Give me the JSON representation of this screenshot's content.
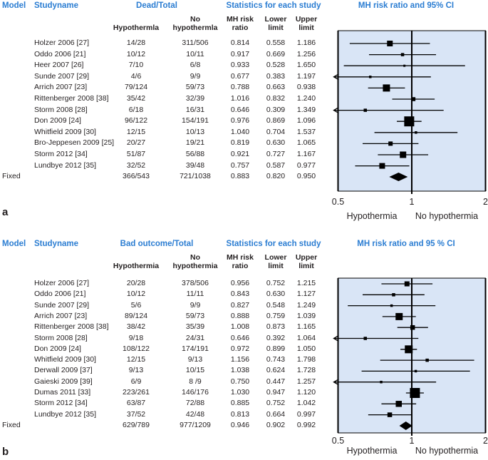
{
  "colors": {
    "header_blue": "#2b7dd2",
    "plot_bg": "#d9e5f6",
    "ink": "#231f20",
    "marker": "#000000"
  },
  "chart_data": [
    {
      "type": "forest",
      "panel_label": "a",
      "title": "MH risk ratio and 95% CI",
      "columns": {
        "model": "Model",
        "studyname": "Studyname",
        "group": "Dead/Total",
        "stats": "Statistics for each study"
      },
      "subcolumns": {
        "hypo": "Hypothermla",
        "no_hypo_1": "No",
        "no_hypo_2": "hypothermla",
        "ratio_1": "MH risk",
        "ratio_2": "ratio",
        "lower_1": "Lower",
        "lower_2": "limit",
        "upper_1": "Upper",
        "upper_2": "limit"
      },
      "model_row_label": "Fixed",
      "xscale": "log2",
      "xlim": [
        0.5,
        2
      ],
      "tick_labels": [
        "0.5",
        "1",
        "2"
      ],
      "xlabel_left": "Hypothermia",
      "xlabel_right": "No hypothermia",
      "studies": [
        {
          "name": "Holzer 2006 [27]",
          "hypo": "14/28",
          "no_hypo": "311/506",
          "ratio": "0.814",
          "lower": "0.558",
          "upper": "1.186",
          "size": 8
        },
        {
          "name": "Oddo 2006 [21]",
          "hypo": "10/12",
          "no_hypo": "10/11",
          "ratio": "0.917",
          "lower": "0.669",
          "upper": "1.256",
          "size": 4.5
        },
        {
          "name": "Heer 2007 [26]",
          "hypo": "7/10",
          "no_hypo": "6/8",
          "ratio": "0.933",
          "lower": "0.528",
          "upper": "1.650",
          "size": 3
        },
        {
          "name": "Sunde 2007 [29]",
          "hypo": "4/6",
          "no_hypo": "9/9",
          "ratio": "0.677",
          "lower": "0.383",
          "upper": "1.197",
          "size": 3.5
        },
        {
          "name": "Arrich 2007 [23]",
          "hypo": "79/124",
          "no_hypo": "59/73",
          "ratio": "0.788",
          "lower": "0.663",
          "upper": "0.938",
          "size": 10
        },
        {
          "name": "Rittenberger 2008 [38]",
          "hypo": "35/42",
          "no_hypo": "32/39",
          "ratio": "1.016",
          "lower": "0.832",
          "upper": "1.240",
          "size": 5.5
        },
        {
          "name": "Storm 2008 [28]",
          "hypo": "6/18",
          "no_hypo": "16/31",
          "ratio": "0.646",
          "lower": "0.309",
          "upper": "1.349",
          "size": 4.5
        },
        {
          "name": "Don 2009 [24]",
          "hypo": "96/122",
          "no_hypo": "154/191",
          "ratio": "0.976",
          "lower": "0.869",
          "upper": "1.096",
          "size": 14
        },
        {
          "name": "Whitfield 2009 [30]",
          "hypo": "12/15",
          "no_hypo": "10/13",
          "ratio": "1.040",
          "lower": "0.704",
          "upper": "1.537",
          "size": 3.5
        },
        {
          "name": "Bro-Jeppesen 2009 [25]",
          "hypo": "20/27",
          "no_hypo": "19/21",
          "ratio": "0.819",
          "lower": "0.630",
          "upper": "1.065",
          "size": 6
        },
        {
          "name": "Storm 2012 [34]",
          "hypo": "51/87",
          "no_hypo": "56/88",
          "ratio": "0.921",
          "lower": "0.727",
          "upper": "1.167",
          "size": 9
        },
        {
          "name": "Lundbye 2012 [35]",
          "hypo": "32/52",
          "no_hypo": "39/48",
          "ratio": "0.757",
          "lower": "0.587",
          "upper": "0.977",
          "size": 8
        }
      ],
      "fixed": {
        "hypo": "366/543",
        "no_hypo": "721/1038",
        "ratio": "0.883",
        "lower": "0.820",
        "upper": "0.950"
      }
    },
    {
      "type": "forest",
      "panel_label": "b",
      "title": "MH risk ratio and 95 % CI",
      "columns": {
        "model": "Model",
        "studyname": "Studyname",
        "group": "Bad outcome/Total",
        "stats": "Statistics for each study"
      },
      "subcolumns": {
        "hypo": "Hypothermia",
        "no_hypo_1": "No",
        "no_hypo_2": "hypothermia",
        "ratio_1": "MH risk",
        "ratio_2": "ratio",
        "lower_1": "Lower",
        "lower_2": "limit",
        "upper_1": "Upper",
        "upper_2": "limit"
      },
      "model_row_label": "Fixed",
      "xscale": "log2",
      "xlim": [
        0.5,
        2
      ],
      "tick_labels": [
        "0.5",
        "1",
        "2"
      ],
      "xlabel_left": "Hypothermia",
      "xlabel_right": "No hypothermia",
      "studies": [
        {
          "name": "Holzer 2006 [27]",
          "hypo": "20/28",
          "no_hypo": "378/506",
          "ratio": "0.956",
          "lower": "0.752",
          "upper": "1.215",
          "size": 7
        },
        {
          "name": "Oddo 2006 [21]",
          "hypo": "10/12",
          "no_hypo": "11/11",
          "ratio": "0.843",
          "lower": "0.630",
          "upper": "1.127",
          "size": 4.5
        },
        {
          "name": "Sunde 2007 [29]",
          "hypo": "5/6",
          "no_hypo": "9/9",
          "ratio": "0.827",
          "lower": "0.548",
          "upper": "1.249",
          "size": 3.5
        },
        {
          "name": "Arrich 2007 [23]",
          "hypo": "89/124",
          "no_hypo": "59/73",
          "ratio": "0.888",
          "lower": "0.759",
          "upper": "1.039",
          "size": 10
        },
        {
          "name": "Rittenberger 2008 [38]",
          "hypo": "38/42",
          "no_hypo": "35/39",
          "ratio": "1.008",
          "lower": "0.873",
          "upper": "1.165",
          "size": 6.5
        },
        {
          "name": "Storm 2008 [28]",
          "hypo": "9/18",
          "no_hypo": "24/31",
          "ratio": "0.646",
          "lower": "0.392",
          "upper": "1.064",
          "size": 4.5
        },
        {
          "name": "Don 2009 [24]",
          "hypo": "108/122",
          "no_hypo": "174/191",
          "ratio": "0.972",
          "lower": "0.899",
          "upper": "1.050",
          "size": 11
        },
        {
          "name": "Whitfield 2009 [30]",
          "hypo": "12/15",
          "no_hypo": "9/13",
          "ratio": "1.156",
          "lower": "0.743",
          "upper": "1.798",
          "size": 4.5
        },
        {
          "name": "Derwall 2009 [37]",
          "hypo": "9/13",
          "no_hypo": "10/15",
          "ratio": "1.038",
          "lower": "0.624",
          "upper": "1.728",
          "size": 3.5
        },
        {
          "name": "Gaieski 2009 [39]",
          "hypo": "6/9",
          "no_hypo": "8 /9",
          "ratio": "0.750",
          "lower": "0.447",
          "upper": "1.257",
          "size": 3.5
        },
        {
          "name": "Dumas 2011 [33]",
          "hypo": "223/261",
          "no_hypo": "146/176",
          "ratio": "1.030",
          "lower": "0.947",
          "upper": "1.120",
          "size": 14
        },
        {
          "name": "Storm 2012 [34]",
          "hypo": "63/87",
          "no_hypo": "72/88",
          "ratio": "0.885",
          "lower": "0.752",
          "upper": "1.042",
          "size": 8.5
        },
        {
          "name": "Lundbye 2012 [35]",
          "hypo": "37/52",
          "no_hypo": "42/48",
          "ratio": "0.813",
          "lower": "0.664",
          "upper": "0.997",
          "size": 6.5
        }
      ],
      "fixed": {
        "hypo": "629/789",
        "no_hypo": "977/1209",
        "ratio": "0.946",
        "lower": "0.902",
        "upper": "0.992"
      }
    }
  ]
}
